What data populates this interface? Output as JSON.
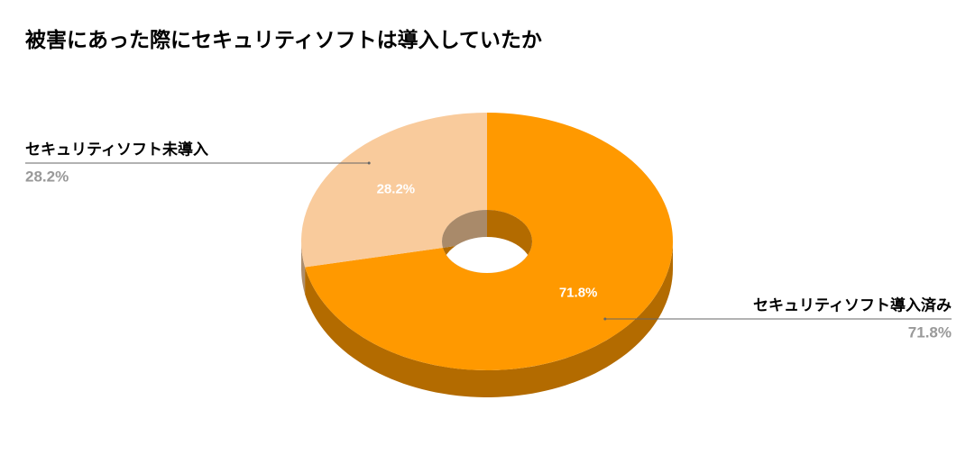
{
  "chart_data": {
    "type": "pie",
    "title": "被害にあった際にセキュリティソフトは導入していたか",
    "categories": [
      "セキュリティソフト導入済み",
      "セキュリティソフト未導入"
    ],
    "values": [
      71.8,
      28.2
    ],
    "value_labels": [
      "71.8%",
      "28.2%"
    ],
    "colors": [
      "#ff9900",
      "#f9cb9c"
    ]
  }
}
